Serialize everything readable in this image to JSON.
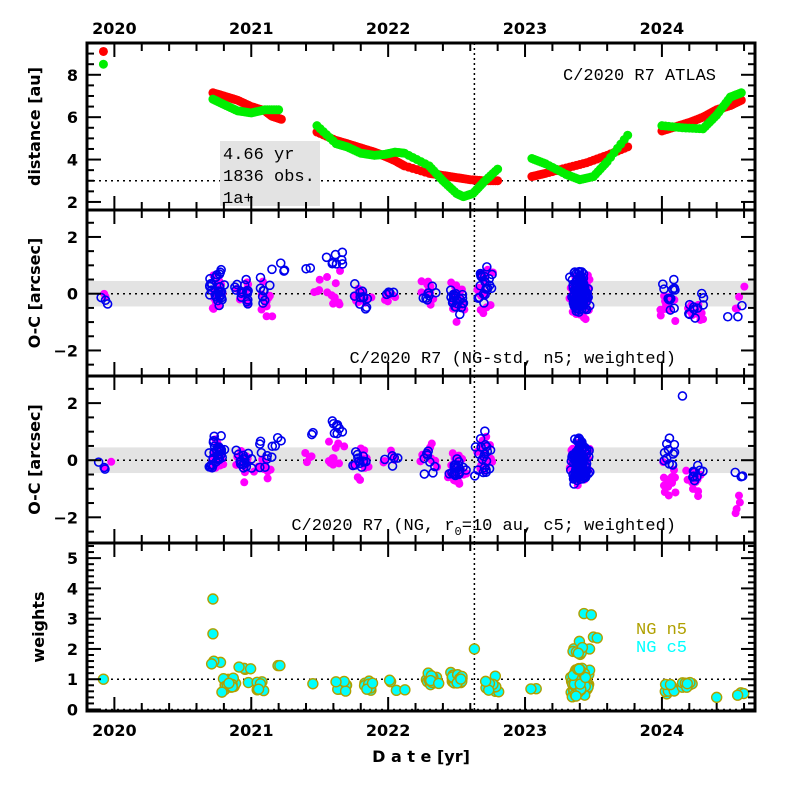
{
  "chart_data": {
    "type": "scatter",
    "title": "C/2020 R7 ATLAS",
    "xlabel": "D a t e [yr]",
    "xlim": [
      2019.8,
      2024.68
    ],
    "x_ticks": [
      "2020",
      "2021",
      "2022",
      "2023",
      "2024"
    ],
    "x_tick_values": [
      2020,
      2021,
      2022,
      2023,
      2024
    ],
    "reference_epoch": 2022.63,
    "panels": [
      {
        "id": "distance",
        "ylabel": "distance [au]",
        "ylim": [
          1.62,
          9.5
        ],
        "y_ticks": [
          2,
          4,
          6,
          8
        ],
        "reference_line_y": 3.0,
        "title": "C/2020 R7 ATLAS",
        "info_box": [
          "4.66 yr",
          "1836 obs.",
          "1a+"
        ],
        "series": [
          {
            "name": "heliocentric distance",
            "color": "#ff0000",
            "points": [
              [
                2019.92,
                9.1
              ],
              [
                2020.72,
                7.15
              ],
              [
                2020.8,
                7.0
              ],
              [
                2020.9,
                6.8
              ],
              [
                2021.0,
                6.5
              ],
              [
                2021.1,
                6.3
              ],
              [
                2021.15,
                6.05
              ],
              [
                2021.22,
                5.9
              ],
              [
                2021.48,
                5.3
              ],
              [
                2021.62,
                4.9
              ],
              [
                2021.7,
                4.75
              ],
              [
                2021.8,
                4.55
              ],
              [
                2021.9,
                4.35
              ],
              [
                2021.98,
                4.15
              ],
              [
                2022.05,
                3.95
              ],
              [
                2022.12,
                3.7
              ],
              [
                2022.3,
                3.35
              ],
              [
                2022.4,
                3.25
              ],
              [
                2022.5,
                3.15
              ],
              [
                2022.6,
                3.05
              ],
              [
                2022.7,
                3.0
              ],
              [
                2022.8,
                3.0
              ],
              [
                2023.05,
                3.2
              ],
              [
                2023.15,
                3.35
              ],
              [
                2023.3,
                3.6
              ],
              [
                2023.45,
                3.85
              ],
              [
                2023.6,
                4.2
              ],
              [
                2023.75,
                4.6
              ],
              [
                2024.0,
                5.35
              ],
              [
                2024.1,
                5.55
              ],
              [
                2024.2,
                5.75
              ],
              [
                2024.3,
                6.0
              ],
              [
                2024.4,
                6.35
              ],
              [
                2024.5,
                6.55
              ],
              [
                2024.58,
                6.8
              ]
            ]
          },
          {
            "name": "geocentric distance",
            "color": "#00ee00",
            "points": [
              [
                2019.92,
                8.5
              ],
              [
                2020.72,
                6.85
              ],
              [
                2020.8,
                6.6
              ],
              [
                2020.9,
                6.3
              ],
              [
                2021.0,
                6.2
              ],
              [
                2021.1,
                6.35
              ],
              [
                2021.2,
                6.35
              ],
              [
                2021.48,
                5.6
              ],
              [
                2021.62,
                4.75
              ],
              [
                2021.7,
                4.6
              ],
              [
                2021.8,
                4.3
              ],
              [
                2021.9,
                4.2
              ],
              [
                2021.98,
                4.25
              ],
              [
                2022.05,
                4.35
              ],
              [
                2022.12,
                4.3
              ],
              [
                2022.3,
                3.7
              ],
              [
                2022.4,
                3.0
              ],
              [
                2022.5,
                2.4
              ],
              [
                2022.55,
                2.25
              ],
              [
                2022.62,
                2.4
              ],
              [
                2022.7,
                2.95
              ],
              [
                2022.8,
                3.55
              ],
              [
                2023.05,
                4.05
              ],
              [
                2023.15,
                3.8
              ],
              [
                2023.3,
                3.3
              ],
              [
                2023.4,
                3.05
              ],
              [
                2023.5,
                3.2
              ],
              [
                2023.6,
                3.9
              ],
              [
                2023.75,
                5.15
              ],
              [
                2024.0,
                5.6
              ],
              [
                2024.15,
                5.5
              ],
              [
                2024.3,
                5.45
              ],
              [
                2024.4,
                6.1
              ],
              [
                2024.5,
                6.95
              ],
              [
                2024.58,
                7.15
              ]
            ]
          }
        ]
      },
      {
        "id": "oc-ngstd",
        "ylabel": "O-C [arcsec]",
        "ylim": [
          -2.9,
          2.95
        ],
        "y_ticks": [
          -2,
          0,
          2
        ],
        "band": [
          -0.45,
          0.45
        ],
        "reference_line_y": 0,
        "label": "C/2020 R7 (NG-std, n5; weighted)",
        "series": [
          {
            "name": "RA residuals",
            "color": "#ff00ff",
            "marker": "filled",
            "clusters": [
              [
                2019.92,
                -0.2,
                0.2,
                2
              ],
              [
                2020.75,
                0.0,
                0.5,
                25
              ],
              [
                2020.95,
                -0.1,
                0.5,
                15
              ],
              [
                2021.1,
                -0.2,
                0.5,
                10
              ],
              [
                2021.45,
                0.2,
                0.3,
                4
              ],
              [
                2021.62,
                0.2,
                0.5,
                10
              ],
              [
                2021.8,
                -0.1,
                0.4,
                12
              ],
              [
                2022.0,
                0.0,
                0.3,
                6
              ],
              [
                2022.3,
                0.0,
                0.4,
                10
              ],
              [
                2022.5,
                -0.3,
                0.5,
                20
              ],
              [
                2022.7,
                0.3,
                0.6,
                20
              ],
              [
                2023.4,
                0.0,
                0.6,
                120
              ],
              [
                2024.05,
                -0.5,
                0.5,
                15
              ],
              [
                2024.25,
                -0.6,
                0.4,
                12
              ],
              [
                2024.55,
                -0.3,
                0.8,
                4
              ]
            ]
          },
          {
            "name": "Dec residuals",
            "color": "#0000ee",
            "marker": "open",
            "clusters": [
              [
                2019.92,
                -0.2,
                0.15,
                3
              ],
              [
                2020.75,
                0.2,
                0.5,
                30
              ],
              [
                2020.95,
                0.0,
                0.4,
                15
              ],
              [
                2021.1,
                0.2,
                0.5,
                8
              ],
              [
                2021.2,
                0.7,
                0.4,
                4
              ],
              [
                2021.45,
                0.9,
                0.1,
                2
              ],
              [
                2021.62,
                1.1,
                0.3,
                8
              ],
              [
                2021.8,
                -0.1,
                0.3,
                12
              ],
              [
                2022.0,
                0.0,
                0.2,
                5
              ],
              [
                2022.3,
                0.0,
                0.3,
                8
              ],
              [
                2022.5,
                -0.3,
                0.4,
                20
              ],
              [
                2022.7,
                0.2,
                0.6,
                20
              ],
              [
                2023.4,
                0.0,
                0.6,
                140
              ],
              [
                2024.05,
                0.0,
                0.6,
                12
              ],
              [
                2024.25,
                -0.5,
                0.4,
                10
              ],
              [
                2024.55,
                -0.6,
                0.3,
                3
              ]
            ]
          }
        ]
      },
      {
        "id": "oc-ng-r0",
        "ylabel": "O-C [arcsec]",
        "ylim": [
          -2.9,
          2.95
        ],
        "y_ticks": [
          -2,
          0,
          2
        ],
        "band": [
          -0.45,
          0.45
        ],
        "reference_line_y": 0,
        "label": "C/2020 R7 (NG, r0=10 au, c5; weighted)",
        "series": [
          {
            "name": "RA residuals",
            "color": "#ff00ff",
            "marker": "filled",
            "clusters": [
              [
                2019.92,
                -0.2,
                0.2,
                2
              ],
              [
                2020.75,
                0.0,
                0.5,
                25
              ],
              [
                2020.95,
                -0.1,
                0.5,
                15
              ],
              [
                2021.1,
                -0.2,
                0.5,
                10
              ],
              [
                2021.45,
                0.2,
                0.3,
                4
              ],
              [
                2021.62,
                0.2,
                0.5,
                10
              ],
              [
                2021.8,
                -0.1,
                0.4,
                12
              ],
              [
                2022.0,
                0.0,
                0.3,
                6
              ],
              [
                2022.3,
                0.2,
                0.5,
                10
              ],
              [
                2022.5,
                -0.3,
                0.5,
                20
              ],
              [
                2022.7,
                0.3,
                0.6,
                20
              ],
              [
                2023.4,
                0.0,
                0.6,
                120
              ],
              [
                2024.05,
                -0.7,
                0.5,
                15
              ],
              [
                2024.25,
                -0.8,
                0.4,
                12
              ],
              [
                2024.55,
                -1.5,
                0.6,
                4
              ]
            ]
          },
          {
            "name": "Dec residuals",
            "color": "#0000ee",
            "marker": "open",
            "clusters": [
              [
                2019.92,
                -0.2,
                0.15,
                3
              ],
              [
                2020.75,
                0.2,
                0.5,
                30
              ],
              [
                2020.95,
                0.0,
                0.4,
                15
              ],
              [
                2021.1,
                0.3,
                0.5,
                8
              ],
              [
                2021.2,
                0.8,
                0.4,
                4
              ],
              [
                2021.45,
                0.9,
                0.1,
                2
              ],
              [
                2021.62,
                1.1,
                0.3,
                8
              ],
              [
                2021.8,
                0.0,
                0.3,
                12
              ],
              [
                2022.0,
                0.0,
                0.2,
                5
              ],
              [
                2022.3,
                -0.1,
                0.3,
                8
              ],
              [
                2022.5,
                -0.4,
                0.4,
                20
              ],
              [
                2022.7,
                0.2,
                0.6,
                20
              ],
              [
                2023.4,
                0.0,
                0.6,
                140
              ],
              [
                2024.05,
                0.4,
                0.6,
                12
              ],
              [
                2024.15,
                2.25,
                0.0,
                1
              ],
              [
                2024.25,
                -0.4,
                0.4,
                10
              ],
              [
                2024.55,
                -0.4,
                0.3,
                3
              ]
            ]
          }
        ]
      },
      {
        "id": "weights",
        "ylabel": "weights",
        "ylim": [
          -0.05,
          5.5
        ],
        "y_ticks": [
          0,
          1,
          2,
          3,
          4,
          5
        ],
        "reference_lines_y": [
          0,
          1
        ],
        "legend": [
          {
            "label": "NG n5",
            "color": "#b0a000"
          },
          {
            "label": "NG c5",
            "color": "#00ffff"
          }
        ],
        "legend_position": "right",
        "series": [
          {
            "name": "NG c5 weights",
            "color": "#00ffff",
            "edge": "#b0a000",
            "clusters": [
              [
                2019.92,
                1.0,
                0.0,
                1
              ],
              [
                2020.72,
                3.65,
                0.0,
                1
              ],
              [
                2020.72,
                2.5,
                0.0,
                1
              ],
              [
                2020.75,
                1.55,
                0.05,
                3
              ],
              [
                2020.85,
                0.8,
                0.25,
                20
              ],
              [
                2020.95,
                1.4,
                0.1,
                4
              ],
              [
                2021.05,
                0.8,
                0.2,
                8
              ],
              [
                2021.2,
                1.45,
                0.0,
                2
              ],
              [
                2021.45,
                0.85,
                0.0,
                1
              ],
              [
                2021.65,
                0.8,
                0.2,
                8
              ],
              [
                2021.85,
                0.8,
                0.2,
                12
              ],
              [
                2022.0,
                0.95,
                0.05,
                2
              ],
              [
                2022.1,
                0.65,
                0.05,
                2
              ],
              [
                2022.3,
                0.95,
                0.2,
                15
              ],
              [
                2022.5,
                1.0,
                0.2,
                20
              ],
              [
                2022.63,
                2.0,
                0.0,
                1
              ],
              [
                2022.75,
                0.8,
                0.2,
                12
              ],
              [
                2023.05,
                0.7,
                0.05,
                2
              ],
              [
                2023.4,
                0.9,
                0.35,
                150
              ],
              [
                2023.4,
                1.8,
                0.4,
                12
              ],
              [
                2023.45,
                3.15,
                0.05,
                2
              ],
              [
                2023.5,
                2.4,
                0.05,
                2
              ],
              [
                2024.05,
                0.7,
                0.25,
                8
              ],
              [
                2024.2,
                0.75,
                0.2,
                8
              ],
              [
                2024.4,
                0.4,
                0.0,
                1
              ],
              [
                2024.55,
                0.6,
                0.1,
                3
              ]
            ]
          }
        ]
      }
    ]
  }
}
